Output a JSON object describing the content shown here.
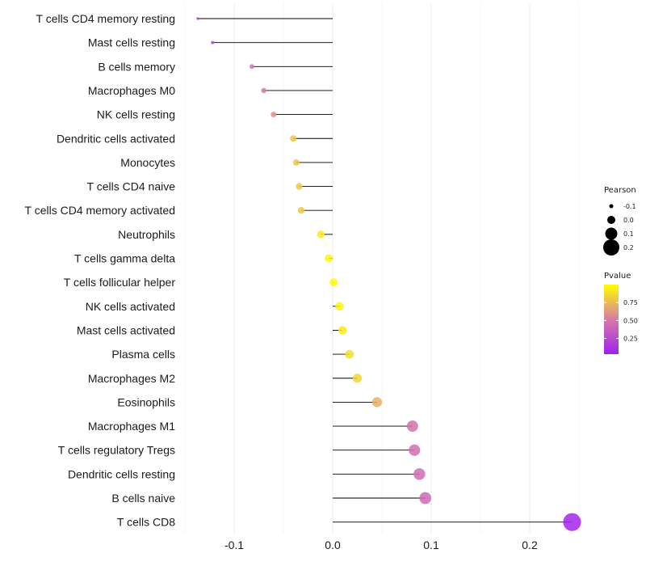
{
  "chart_data": {
    "type": "lollipop",
    "title": "",
    "xlabel": "",
    "ylabel": "",
    "xlim": [
      -0.15,
      0.25
    ],
    "x_ticks": [
      -0.1,
      0.0,
      0.1,
      0.2
    ],
    "x_tick_labels": [
      "-0.1",
      "0.0",
      "0.1",
      "0.2"
    ],
    "grid": true,
    "points": [
      {
        "category": "T cells CD4 memory resting",
        "pearson": -0.137,
        "pvalue": 0.12
      },
      {
        "category": "Mast cells resting",
        "pearson": -0.122,
        "pvalue": 0.2
      },
      {
        "category": "B cells memory",
        "pearson": -0.082,
        "pvalue": 0.45
      },
      {
        "category": "Macrophages M0",
        "pearson": -0.07,
        "pvalue": 0.5
      },
      {
        "category": "NK cells resting",
        "pearson": -0.06,
        "pvalue": 0.6
      },
      {
        "category": "Dendritic cells activated",
        "pearson": -0.04,
        "pvalue": 0.78
      },
      {
        "category": "Monocytes",
        "pearson": -0.037,
        "pvalue": 0.78
      },
      {
        "category": "T cells CD4 naive",
        "pearson": -0.034,
        "pvalue": 0.8
      },
      {
        "category": "T cells CD4 memory activated",
        "pearson": -0.032,
        "pvalue": 0.8
      },
      {
        "category": "Neutrophils",
        "pearson": -0.012,
        "pvalue": 0.93
      },
      {
        "category": "T cells gamma delta",
        "pearson": -0.004,
        "pvalue": 0.97
      },
      {
        "category": "T cells follicular helper",
        "pearson": 0.001,
        "pvalue": 0.99
      },
      {
        "category": "NK cells activated",
        "pearson": 0.007,
        "pvalue": 0.95
      },
      {
        "category": "Mast cells activated",
        "pearson": 0.01,
        "pvalue": 0.93
      },
      {
        "category": "Plasma cells",
        "pearson": 0.017,
        "pvalue": 0.88
      },
      {
        "category": "Macrophages M2",
        "pearson": 0.025,
        "pvalue": 0.84
      },
      {
        "category": "Eosinophils",
        "pearson": 0.045,
        "pvalue": 0.7
      },
      {
        "category": "Macrophages M1",
        "pearson": 0.081,
        "pvalue": 0.45
      },
      {
        "category": "T cells regulatory  Tregs ",
        "pearson": 0.083,
        "pvalue": 0.44
      },
      {
        "category": "Dendritic cells resting",
        "pearson": 0.088,
        "pvalue": 0.42
      },
      {
        "category": "B cells naive",
        "pearson": 0.094,
        "pvalue": 0.4
      },
      {
        "category": "T cells CD8",
        "pearson": 0.243,
        "pvalue": 0.03
      }
    ],
    "legend_size": {
      "title": "Pearson",
      "position": "right",
      "values": [
        -0.1,
        0.0,
        0.1,
        0.2
      ],
      "labels": [
        "-0.1",
        "0.0",
        "0.1",
        "0.2"
      ]
    },
    "legend_color": {
      "title": "Pvalue",
      "position": "right",
      "range": [
        0.03,
        1.0
      ],
      "ticks": [
        0.75,
        0.5,
        0.25
      ],
      "tick_labels": [
        "0.75",
        "0.50",
        "0.25"
      ],
      "colors": {
        "low": "#a020f0",
        "mid": "#d87aa8",
        "high": "#ffff00"
      }
    }
  }
}
